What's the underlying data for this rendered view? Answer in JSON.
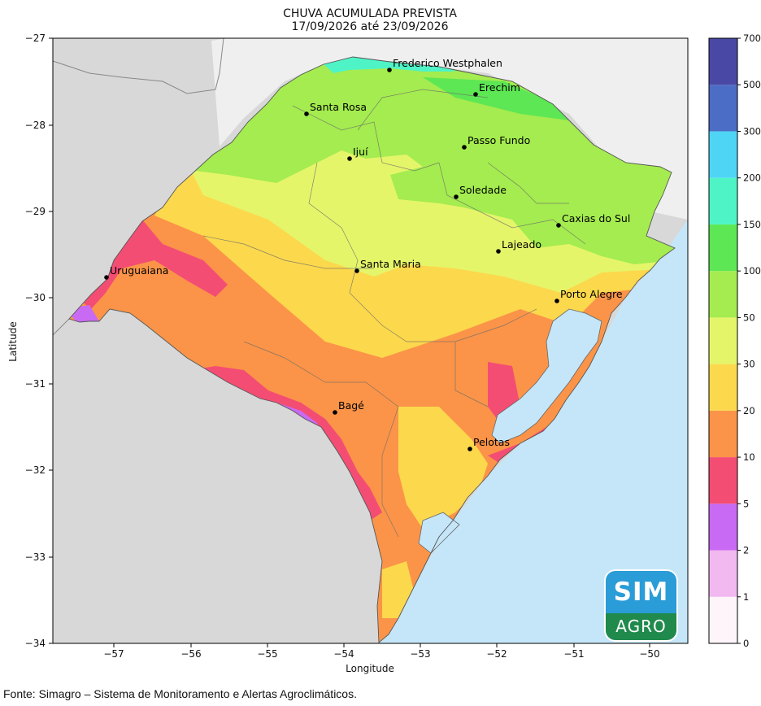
{
  "map": {
    "title": "CHUVA ACUMULADA PREVISTA",
    "subtitle": "17/09/2026 até 23/09/2026",
    "xlabel": "Longitude",
    "ylabel": "Latitude",
    "x_ticks": [
      "−57",
      "−56",
      "−55",
      "−54",
      "−53",
      "−52",
      "−51",
      "−50"
    ],
    "y_ticks": [
      "−27",
      "−28",
      "−29",
      "−30",
      "−31",
      "−32",
      "−33",
      "−34"
    ],
    "colors": {
      "land_other": "#d8d8d8",
      "land_north": "#efefef",
      "ocean": "#c5e6f8"
    },
    "cities": [
      {
        "name": "Frederico Westphalen"
      },
      {
        "name": "Erechim"
      },
      {
        "name": "Santa Rosa"
      },
      {
        "name": "Passo Fundo"
      },
      {
        "name": "Ijuí"
      },
      {
        "name": "Soledade"
      },
      {
        "name": "Caxias do Sul"
      },
      {
        "name": "Lajeado"
      },
      {
        "name": "Uruguaiana"
      },
      {
        "name": "Santa Maria"
      },
      {
        "name": "Porto Alegre"
      },
      {
        "name": "Bagé"
      },
      {
        "name": "Pelotas"
      }
    ]
  },
  "colorbar": {
    "levels": [
      "0",
      "1",
      "2",
      "5",
      "10",
      "20",
      "30",
      "50",
      "100",
      "150",
      "200",
      "300",
      "500",
      "700"
    ],
    "colors": [
      "#fdf5fa",
      "#f2b8f0",
      "#c86af3",
      "#f44d74",
      "#fb9448",
      "#fcd84c",
      "#e5f56a",
      "#a4ec4f",
      "#5de754",
      "#4ff4c6",
      "#4ed5f6",
      "#4c6dc5",
      "#4a48a5"
    ]
  },
  "logo": {
    "top_text": "SIM",
    "bottom_text": "AGRO"
  },
  "footer": "Fonte: Simagro – Sistema de Monitoramento e Alertas Agroclimáticos."
}
